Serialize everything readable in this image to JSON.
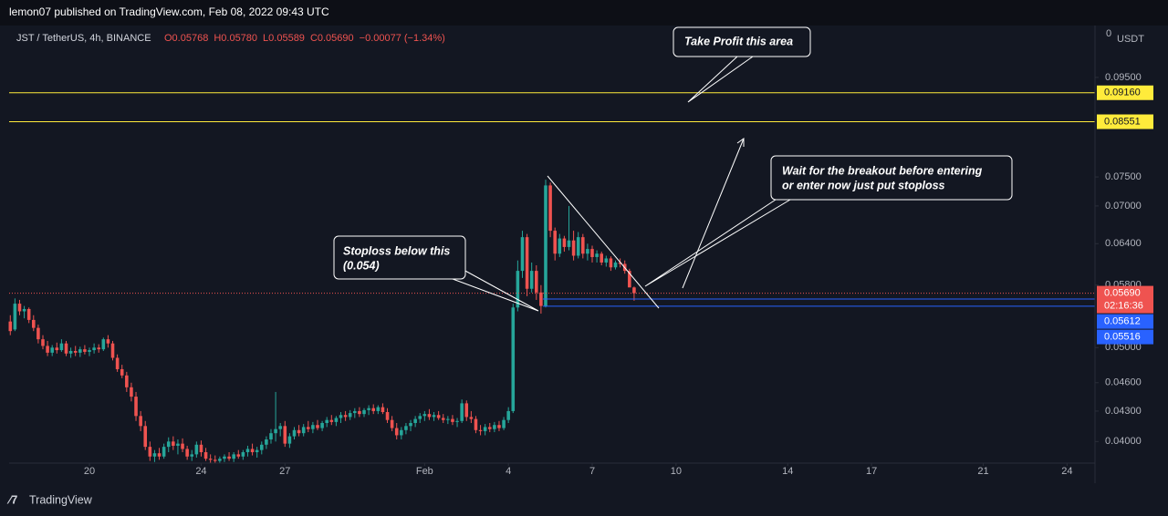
{
  "header": {
    "published": "lemon07 published on TradingView.com, Feb 08, 2022 09:43 UTC",
    "symbol": "JST / TetherUS, 4h, BINANCE",
    "ohlc": [
      "O0.05768",
      "H0.05780",
      "L0.05589",
      "C0.05690",
      "−0.00077 (−1.34%)"
    ]
  },
  "footer": {
    "brand": "TradingView"
  },
  "annotations": [
    {
      "lines": [
        "Take Profit this area"
      ]
    },
    {
      "lines": [
        "Wait for the breakout before entering",
        "or enter now just put stoploss"
      ]
    },
    {
      "lines": [
        "Stoploss below this",
        "(0.054)"
      ]
    }
  ],
  "chart_data": {
    "type": "candlestick",
    "currency": "USDT",
    "log_scale": true,
    "up_color": "#26a69a",
    "down_color": "#ef5350",
    "xlim": [
      -0.25,
      233
    ],
    "ylim": [
      0.038,
      0.107
    ],
    "xticks": [
      {
        "value": 17,
        "label": "20"
      },
      {
        "value": 41,
        "label": "24"
      },
      {
        "value": 59,
        "label": "27"
      },
      {
        "value": 89,
        "label": "Feb"
      },
      {
        "value": 107,
        "label": "4"
      },
      {
        "value": 125,
        "label": "7"
      },
      {
        "value": 143,
        "label": "10"
      },
      {
        "value": 167,
        "label": "14"
      },
      {
        "value": 185,
        "label": "17"
      },
      {
        "value": 209,
        "label": "21"
      },
      {
        "value": 227,
        "label": "24"
      }
    ],
    "yticks": [
      {
        "value": 0.095,
        "label": "0.09500"
      },
      {
        "value": 0.075,
        "label": "0.07500"
      },
      {
        "value": 0.07,
        "label": "0.07000"
      },
      {
        "value": 0.064,
        "label": "0.06400"
      },
      {
        "value": 0.058,
        "label": "0.05800"
      },
      {
        "value": 0.05,
        "label": "0.05000"
      },
      {
        "value": 0.046,
        "label": "0.04600"
      },
      {
        "value": 0.043,
        "label": "0.04300"
      },
      {
        "value": 0.04,
        "label": "0.04000"
      }
    ],
    "price_lines": [
      {
        "value": 0.0916,
        "label": "0.09160",
        "color": "#ffeb3b"
      },
      {
        "value": 0.08551,
        "label": "0.08551",
        "color": "#ffeb3b"
      },
      {
        "value": 0.05612,
        "label": "0.05612",
        "color": "#2962ff"
      },
      {
        "value": 0.05516,
        "label": "0.05516",
        "color": "#2962ff"
      }
    ],
    "last_price": {
      "value": 0.0569,
      "label": "0.05690",
      "countdown": "02:16:36",
      "color": "#ef5350"
    },
    "candles": [
      [
        0.0532,
        0.054,
        0.0515,
        0.052
      ],
      [
        0.0522,
        0.0562,
        0.052,
        0.0555
      ],
      [
        0.0555,
        0.056,
        0.054,
        0.0545
      ],
      [
        0.0545,
        0.0552,
        0.0536,
        0.0548
      ],
      [
        0.0548,
        0.055,
        0.053,
        0.0534
      ],
      [
        0.0534,
        0.054,
        0.052,
        0.0524
      ],
      [
        0.0524,
        0.0528,
        0.0505,
        0.051
      ],
      [
        0.051,
        0.0515,
        0.0498,
        0.0502
      ],
      [
        0.0502,
        0.0508,
        0.049,
        0.0494
      ],
      [
        0.0494,
        0.0503,
        0.049,
        0.05
      ],
      [
        0.05,
        0.0506,
        0.0493,
        0.0497
      ],
      [
        0.0497,
        0.051,
        0.0495,
        0.0505
      ],
      [
        0.0505,
        0.0508,
        0.049,
        0.0493
      ],
      [
        0.0493,
        0.05,
        0.0488,
        0.0496
      ],
      [
        0.0496,
        0.0502,
        0.049,
        0.0494
      ],
      [
        0.0494,
        0.0501,
        0.0489,
        0.0498
      ],
      [
        0.0498,
        0.0503,
        0.0492,
        0.0495
      ],
      [
        0.0495,
        0.05,
        0.049,
        0.0497
      ],
      [
        0.0497,
        0.0505,
        0.0493,
        0.05
      ],
      [
        0.05,
        0.0504,
        0.0494,
        0.0498
      ],
      [
        0.0498,
        0.0512,
        0.0496,
        0.051
      ],
      [
        0.051,
        0.0515,
        0.05,
        0.0505
      ],
      [
        0.0505,
        0.0508,
        0.0485,
        0.0488
      ],
      [
        0.0488,
        0.0492,
        0.0472,
        0.0475
      ],
      [
        0.0475,
        0.048,
        0.0465,
        0.0468
      ],
      [
        0.0468,
        0.0472,
        0.045,
        0.0455
      ],
      [
        0.0455,
        0.046,
        0.044,
        0.0445
      ],
      [
        0.0445,
        0.045,
        0.042,
        0.0425
      ],
      [
        0.0425,
        0.043,
        0.041,
        0.0415
      ],
      [
        0.0415,
        0.042,
        0.0392,
        0.0395
      ],
      [
        0.0395,
        0.04,
        0.0382,
        0.0386
      ],
      [
        0.0386,
        0.0392,
        0.0381,
        0.0389
      ],
      [
        0.0389,
        0.0394,
        0.0383,
        0.0386
      ],
      [
        0.0386,
        0.0398,
        0.0384,
        0.0395
      ],
      [
        0.0395,
        0.0404,
        0.039,
        0.04
      ],
      [
        0.04,
        0.0405,
        0.0392,
        0.0396
      ],
      [
        0.0396,
        0.0402,
        0.0388,
        0.0398
      ],
      [
        0.0398,
        0.0403,
        0.039,
        0.0393
      ],
      [
        0.0393,
        0.0396,
        0.0383,
        0.0386
      ],
      [
        0.0386,
        0.0392,
        0.0382,
        0.0388
      ],
      [
        0.0388,
        0.04,
        0.0385,
        0.0397
      ],
      [
        0.0397,
        0.0401,
        0.0386,
        0.039
      ],
      [
        0.039,
        0.0394,
        0.0382,
        0.0384
      ],
      [
        0.0384,
        0.0388,
        0.038,
        0.0383
      ],
      [
        0.0383,
        0.0387,
        0.038,
        0.0382
      ],
      [
        0.0382,
        0.0386,
        0.038,
        0.0384
      ],
      [
        0.0384,
        0.0388,
        0.0381,
        0.0386
      ],
      [
        0.0386,
        0.039,
        0.0382,
        0.0384
      ],
      [
        0.0384,
        0.039,
        0.0381,
        0.0388
      ],
      [
        0.0388,
        0.0392,
        0.0384,
        0.0386
      ],
      [
        0.0386,
        0.0392,
        0.0383,
        0.039
      ],
      [
        0.039,
        0.0396,
        0.0386,
        0.0393
      ],
      [
        0.0393,
        0.0398,
        0.0387,
        0.039
      ],
      [
        0.039,
        0.0395,
        0.0385,
        0.0392
      ],
      [
        0.0392,
        0.04,
        0.0388,
        0.0397
      ],
      [
        0.0397,
        0.0405,
        0.0393,
        0.0402
      ],
      [
        0.0402,
        0.0412,
        0.0398,
        0.0408
      ],
      [
        0.0408,
        0.045,
        0.04,
        0.0412
      ],
      [
        0.0412,
        0.0418,
        0.0405,
        0.0415
      ],
      [
        0.0415,
        0.042,
        0.0395,
        0.0398
      ],
      [
        0.0398,
        0.0408,
        0.0394,
        0.0405
      ],
      [
        0.0405,
        0.0414,
        0.0402,
        0.0411
      ],
      [
        0.0411,
        0.0416,
        0.0405,
        0.0408
      ],
      [
        0.0408,
        0.0417,
        0.0405,
        0.0414
      ],
      [
        0.0414,
        0.042,
        0.0409,
        0.0412
      ],
      [
        0.0412,
        0.0419,
        0.0408,
        0.0416
      ],
      [
        0.0416,
        0.0421,
        0.0411,
        0.0413
      ],
      [
        0.0413,
        0.042,
        0.041,
        0.0418
      ],
      [
        0.0418,
        0.0424,
        0.0414,
        0.0421
      ],
      [
        0.0421,
        0.0426,
        0.0416,
        0.0419
      ],
      [
        0.0419,
        0.0425,
        0.0415,
        0.0423
      ],
      [
        0.0423,
        0.0429,
        0.0418,
        0.0426
      ],
      [
        0.0426,
        0.043,
        0.042,
        0.0424
      ],
      [
        0.0424,
        0.0431,
        0.0421,
        0.0428
      ],
      [
        0.0428,
        0.0433,
        0.0423,
        0.043
      ],
      [
        0.043,
        0.0434,
        0.0424,
        0.0427
      ],
      [
        0.0427,
        0.0433,
        0.0424,
        0.0431
      ],
      [
        0.0431,
        0.0436,
        0.0426,
        0.0433
      ],
      [
        0.0433,
        0.0437,
        0.0427,
        0.043
      ],
      [
        0.043,
        0.0436,
        0.0427,
        0.0434
      ],
      [
        0.0434,
        0.0438,
        0.0427,
        0.0429
      ],
      [
        0.0429,
        0.0433,
        0.0418,
        0.0421
      ],
      [
        0.0421,
        0.0425,
        0.041,
        0.0413
      ],
      [
        0.0413,
        0.0418,
        0.0402,
        0.0406
      ],
      [
        0.0406,
        0.0414,
        0.0402,
        0.0411
      ],
      [
        0.0411,
        0.0418,
        0.0407,
        0.0415
      ],
      [
        0.0415,
        0.0421,
        0.041,
        0.0418
      ],
      [
        0.0418,
        0.0425,
        0.0414,
        0.0422
      ],
      [
        0.0422,
        0.0428,
        0.0418,
        0.0425
      ],
      [
        0.0425,
        0.043,
        0.042,
        0.0427
      ],
      [
        0.0427,
        0.0432,
        0.0421,
        0.0424
      ],
      [
        0.0424,
        0.0429,
        0.042,
        0.0426
      ],
      [
        0.0426,
        0.043,
        0.0421,
        0.0423
      ],
      [
        0.0423,
        0.0427,
        0.0418,
        0.0421
      ],
      [
        0.0421,
        0.0425,
        0.0417,
        0.0422
      ],
      [
        0.0422,
        0.0426,
        0.0416,
        0.0419
      ],
      [
        0.0419,
        0.0423,
        0.0414,
        0.042
      ],
      [
        0.042,
        0.0442,
        0.0418,
        0.0438
      ],
      [
        0.0438,
        0.0441,
        0.042,
        0.0424
      ],
      [
        0.0424,
        0.043,
        0.0418,
        0.0422
      ],
      [
        0.0422,
        0.0425,
        0.0408,
        0.0411
      ],
      [
        0.0411,
        0.0416,
        0.0406,
        0.041
      ],
      [
        0.041,
        0.0417,
        0.0406,
        0.0414
      ],
      [
        0.0414,
        0.0418,
        0.0409,
        0.0412
      ],
      [
        0.0412,
        0.0419,
        0.0409,
        0.0416
      ],
      [
        0.0416,
        0.042,
        0.041,
        0.0413
      ],
      [
        0.0413,
        0.0424,
        0.0411,
        0.0421
      ],
      [
        0.0421,
        0.0434,
        0.0418,
        0.043
      ],
      [
        0.043,
        0.0555,
        0.0428,
        0.055
      ],
      [
        0.055,
        0.0615,
        0.0545,
        0.06
      ],
      [
        0.06,
        0.066,
        0.059,
        0.065
      ],
      [
        0.065,
        0.0655,
        0.0565,
        0.0575
      ],
      [
        0.0575,
        0.0612,
        0.057,
        0.06
      ],
      [
        0.06,
        0.0608,
        0.056,
        0.057
      ],
      [
        0.057,
        0.058,
        0.0542,
        0.0552
      ],
      [
        0.0552,
        0.0745,
        0.055,
        0.0735
      ],
      [
        0.0735,
        0.074,
        0.065,
        0.066
      ],
      [
        0.066,
        0.0665,
        0.0615,
        0.0625
      ],
      [
        0.0625,
        0.0655,
        0.062,
        0.0648
      ],
      [
        0.0648,
        0.0652,
        0.0628,
        0.0635
      ],
      [
        0.0635,
        0.07,
        0.063,
        0.0645
      ],
      [
        0.0645,
        0.066,
        0.0615,
        0.0622
      ],
      [
        0.0622,
        0.0658,
        0.0618,
        0.065
      ],
      [
        0.065,
        0.0655,
        0.0618,
        0.0625
      ],
      [
        0.0625,
        0.064,
        0.0615,
        0.0632
      ],
      [
        0.0632,
        0.0637,
        0.0612,
        0.062
      ],
      [
        0.062,
        0.063,
        0.0612,
        0.0625
      ],
      [
        0.0625,
        0.0628,
        0.0608,
        0.0612
      ],
      [
        0.0612,
        0.0622,
        0.0606,
        0.0618
      ],
      [
        0.0618,
        0.0621,
        0.06,
        0.0605
      ],
      [
        0.0605,
        0.0615,
        0.0602,
        0.0612
      ],
      [
        0.0612,
        0.0618,
        0.0605,
        0.061
      ],
      [
        0.061,
        0.0615,
        0.0596,
        0.06
      ],
      [
        0.06,
        0.0603,
        0.0578,
        0.05768
      ],
      [
        0.05768,
        0.0578,
        0.05589,
        0.0569
      ]
    ]
  }
}
